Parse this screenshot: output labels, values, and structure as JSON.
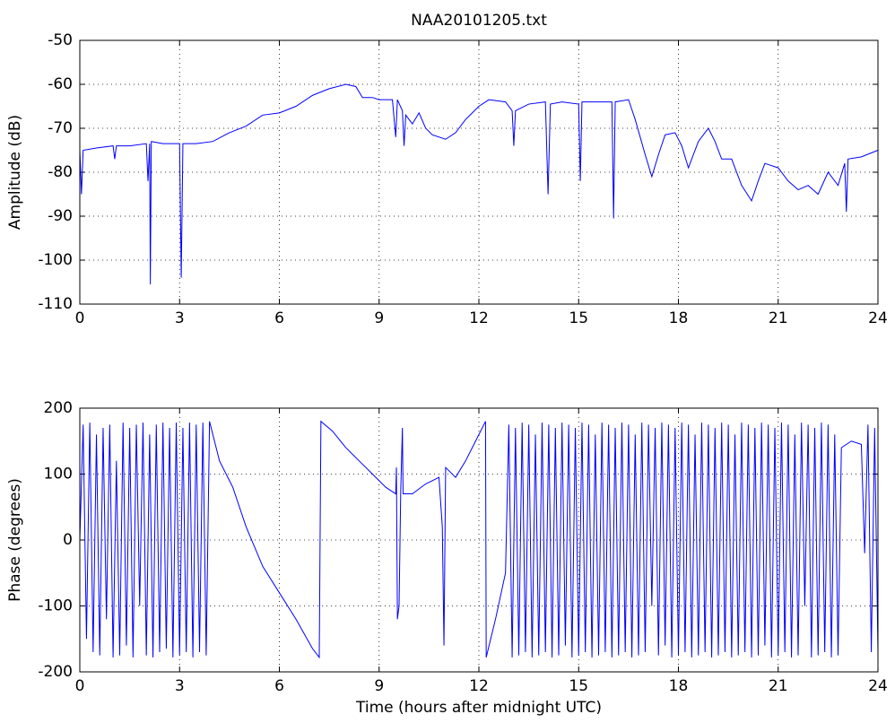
{
  "chart_data": [
    {
      "type": "line",
      "title": "NAA20101205.txt",
      "ylabel": "Amplitude (dB)",
      "xlim": [
        0,
        24
      ],
      "xticks": [
        0,
        3,
        6,
        9,
        12,
        15,
        18,
        21,
        24
      ],
      "ylim": [
        -110,
        -50
      ],
      "yticks": [
        -110,
        -100,
        -90,
        -80,
        -70,
        -60,
        -50
      ],
      "grid": true,
      "series": [
        {
          "color": "#0000ff",
          "x": [
            0,
            0.05,
            0.1,
            0.5,
            1,
            1.05,
            1.1,
            1.5,
            2,
            2.05,
            2.1,
            2.12,
            2.15,
            2.5,
            3,
            3.05,
            3.1,
            3.5,
            4,
            4.5,
            5,
            5.5,
            6,
            6.5,
            7,
            7.5,
            8,
            8.3,
            8.5,
            8.8,
            9,
            9.4,
            9.5,
            9.55,
            9.7,
            9.75,
            9.8,
            10,
            10.2,
            10.4,
            10.6,
            11,
            11.3,
            11.6,
            12,
            12.3,
            12.8,
            13,
            13.05,
            13.1,
            13.5,
            14,
            14.08,
            14.15,
            14.5,
            15,
            15.05,
            15.1,
            15.5,
            16,
            16.05,
            16.1,
            16.5,
            16.7,
            17,
            17.2,
            17.4,
            17.6,
            17.9,
            18.1,
            18.3,
            18.6,
            18.9,
            19.1,
            19.3,
            19.6,
            19.9,
            20.2,
            20.4,
            20.6,
            21,
            21.3,
            21.6,
            21.9,
            22.2,
            22.5,
            22.8,
            23,
            23.05,
            23.1,
            23.5,
            24
          ],
          "values": [
            -75,
            -85,
            -75,
            -74.5,
            -74,
            -77,
            -74,
            -74,
            -73.5,
            -82,
            -73.5,
            -105.5,
            -73,
            -73.5,
            -73.5,
            -104,
            -73.5,
            -73.5,
            -73,
            -71,
            -69.5,
            -67,
            -66.5,
            -65,
            -62.5,
            -61,
            -60,
            -60.5,
            -63,
            -63,
            -63.5,
            -63.5,
            -72,
            -63.5,
            -66,
            -74,
            -67,
            -69,
            -66.5,
            -70,
            -71.5,
            -72.5,
            -71,
            -68,
            -65,
            -63.5,
            -64,
            -66,
            -74,
            -66,
            -64.5,
            -64,
            -85,
            -64.5,
            -64,
            -64.5,
            -82,
            -64,
            -64,
            -64,
            -90.5,
            -64,
            -63.5,
            -68,
            -76,
            -81,
            -76,
            -71.5,
            -71,
            -74,
            -79,
            -73,
            -70,
            -73,
            -77,
            -77,
            -83,
            -86.5,
            -82,
            -78,
            -79,
            -82,
            -84,
            -83,
            -85,
            -80,
            -83,
            -78,
            -89,
            -77,
            -76.5,
            -75
          ]
        }
      ]
    },
    {
      "type": "line",
      "xlabel": "Time (hours after midnight UTC)",
      "ylabel": "Phase (degrees)",
      "xlim": [
        0,
        24
      ],
      "xticks": [
        0,
        3,
        6,
        9,
        12,
        15,
        18,
        21,
        24
      ],
      "ylim": [
        -200,
        200
      ],
      "yticks": [
        -200,
        -100,
        0,
        100,
        200
      ],
      "grid": true,
      "series": [
        {
          "color": "#0000ff",
          "x": [
            0,
            0.1,
            0.2,
            0.3,
            0.4,
            0.5,
            0.6,
            0.7,
            0.8,
            0.9,
            1.0,
            1.1,
            1.2,
            1.3,
            1.4,
            1.5,
            1.6,
            1.7,
            1.8,
            1.9,
            2.0,
            2.1,
            2.2,
            2.3,
            2.4,
            2.5,
            2.6,
            2.7,
            2.8,
            2.9,
            3.0,
            3.1,
            3.2,
            3.3,
            3.4,
            3.5,
            3.6,
            3.7,
            3.8,
            3.9,
            4.2,
            4.6,
            5.0,
            5.5,
            6.0,
            6.5,
            7.0,
            7.2,
            7.25,
            7.6,
            8.0,
            8.4,
            8.8,
            9.2,
            9.5,
            9.52,
            9.55,
            9.6,
            9.65,
            9.7,
            9.72,
            10,
            10.4,
            10.8,
            10.9,
            10.95,
            11.0,
            11.3,
            11.6,
            11.9,
            12.2,
            12.22,
            12.5,
            12.8,
            12.9,
            13.0,
            13.1,
            13.2,
            13.3,
            13.4,
            13.5,
            13.6,
            13.7,
            13.8,
            13.9,
            14.0,
            14.1,
            14.2,
            14.3,
            14.4,
            14.5,
            14.6,
            14.7,
            14.8,
            14.9,
            15.0,
            15.1,
            15.2,
            15.3,
            15.4,
            15.5,
            15.6,
            15.7,
            15.8,
            15.9,
            16.0,
            16.1,
            16.2,
            16.3,
            16.4,
            16.5,
            16.6,
            16.7,
            16.8,
            16.9,
            17.0,
            17.1,
            17.2,
            17.3,
            17.4,
            17.5,
            17.6,
            17.7,
            17.8,
            17.9,
            18.0,
            18.1,
            18.2,
            18.3,
            18.4,
            18.5,
            18.6,
            18.7,
            18.8,
            18.9,
            19.0,
            19.1,
            19.2,
            19.3,
            19.4,
            19.5,
            19.6,
            19.7,
            19.8,
            19.9,
            20.0,
            20.1,
            20.2,
            20.3,
            20.4,
            20.5,
            20.6,
            20.7,
            20.8,
            20.9,
            21.0,
            21.1,
            21.2,
            21.3,
            21.4,
            21.5,
            21.6,
            21.7,
            21.8,
            21.9,
            22.0,
            22.1,
            22.2,
            22.3,
            22.4,
            22.5,
            22.6,
            22.7,
            22.8,
            22.9,
            23.2,
            23.5,
            23.6,
            23.7,
            23.8,
            23.9,
            24
          ],
          "values": [
            0,
            175,
            -150,
            178,
            -170,
            160,
            -175,
            170,
            -120,
            175,
            -178,
            120,
            -175,
            178,
            -160,
            170,
            -178,
            175,
            -100,
            178,
            -175,
            160,
            -178,
            175,
            -170,
            178,
            -165,
            170,
            -178,
            178,
            -175,
            170,
            -170,
            178,
            -178,
            175,
            -170,
            178,
            -175,
            180,
            120,
            80,
            20,
            -40,
            -80,
            -120,
            -165,
            -178,
            180,
            165,
            140,
            120,
            100,
            80,
            70,
            110,
            -120,
            -100,
            75,
            170,
            70,
            70,
            85,
            95,
            20,
            -160,
            110,
            95,
            120,
            150,
            180,
            -178,
            -120,
            -50,
            175,
            -178,
            170,
            -175,
            178,
            -170,
            175,
            -178,
            160,
            -175,
            178,
            -170,
            175,
            -178,
            170,
            -175,
            178,
            -160,
            175,
            -178,
            170,
            -175,
            178,
            -170,
            175,
            -178,
            160,
            -175,
            178,
            -170,
            175,
            -178,
            170,
            -175,
            178,
            -170,
            175,
            -178,
            160,
            -175,
            178,
            -170,
            175,
            -100,
            170,
            -175,
            178,
            -160,
            175,
            -178,
            170,
            -175,
            178,
            -170,
            175,
            -178,
            160,
            -175,
            178,
            -170,
            175,
            -178,
            170,
            -175,
            178,
            -170,
            175,
            -178,
            160,
            -175,
            178,
            -170,
            175,
            -178,
            170,
            -175,
            178,
            -160,
            175,
            -178,
            170,
            -175,
            178,
            -170,
            175,
            -178,
            160,
            -175,
            178,
            -100,
            175,
            -178,
            170,
            -175,
            178,
            -170,
            175,
            -178,
            160,
            -175,
            140,
            150,
            145,
            -20,
            175,
            -170,
            170,
            -170
          ]
        }
      ]
    }
  ]
}
